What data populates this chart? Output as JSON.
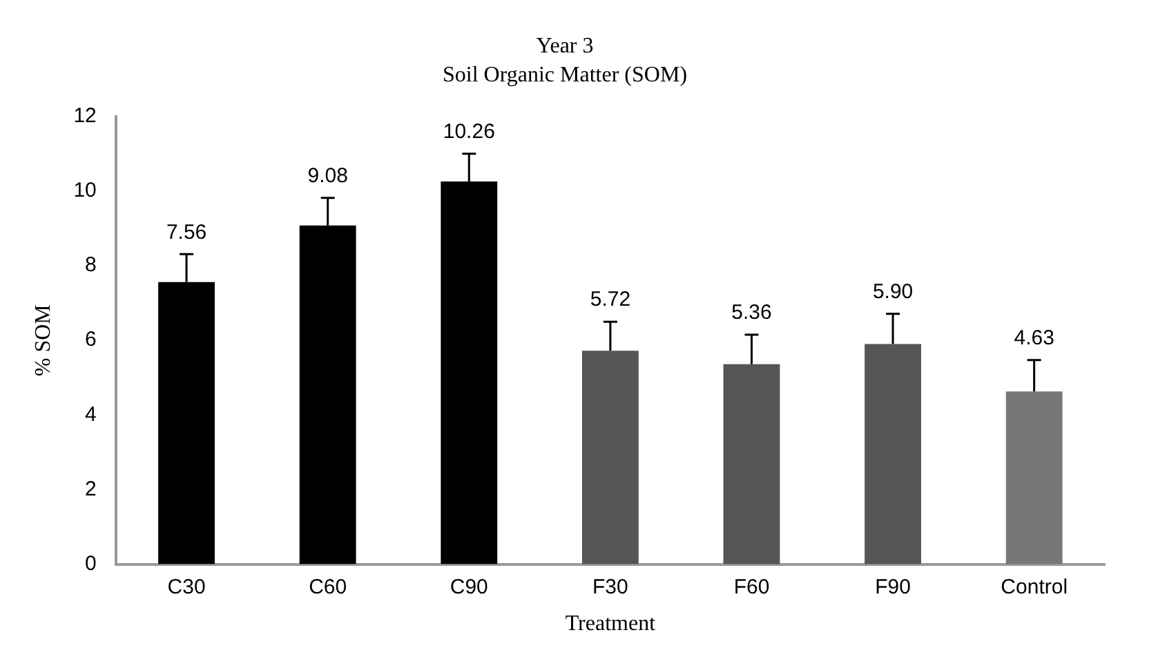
{
  "chart_data": {
    "type": "bar",
    "title": "Year 3",
    "subtitle": "Soil Organic Matter (SOM)",
    "xlabel": "Treatment",
    "ylabel": "% SOM",
    "categories": [
      "C30",
      "C60",
      "C90",
      "F30",
      "F60",
      "F90",
      "Control"
    ],
    "values": [
      7.56,
      9.08,
      10.26,
      5.72,
      5.36,
      5.9,
      4.63
    ],
    "colors": [
      "#000000",
      "#000000",
      "#000000",
      "#555555",
      "#555555",
      "#555555",
      "#777777"
    ],
    "errors": [
      [
        7.56,
        8.31
      ],
      [
        9.08,
        9.82
      ],
      [
        10.26,
        11.0
      ],
      [
        5.72,
        6.5
      ],
      [
        5.36,
        6.15
      ],
      [
        5.9,
        6.71
      ],
      [
        4.63,
        5.47
      ]
    ],
    "value_labels": [
      "7.56",
      "9.08",
      "10.26",
      "5.72",
      "5.36",
      "5.90",
      "4.63"
    ],
    "ylim": [
      0,
      12
    ],
    "yticks": [
      0,
      2,
      4,
      6,
      8,
      10,
      12
    ],
    "grid": false,
    "legend": false
  }
}
